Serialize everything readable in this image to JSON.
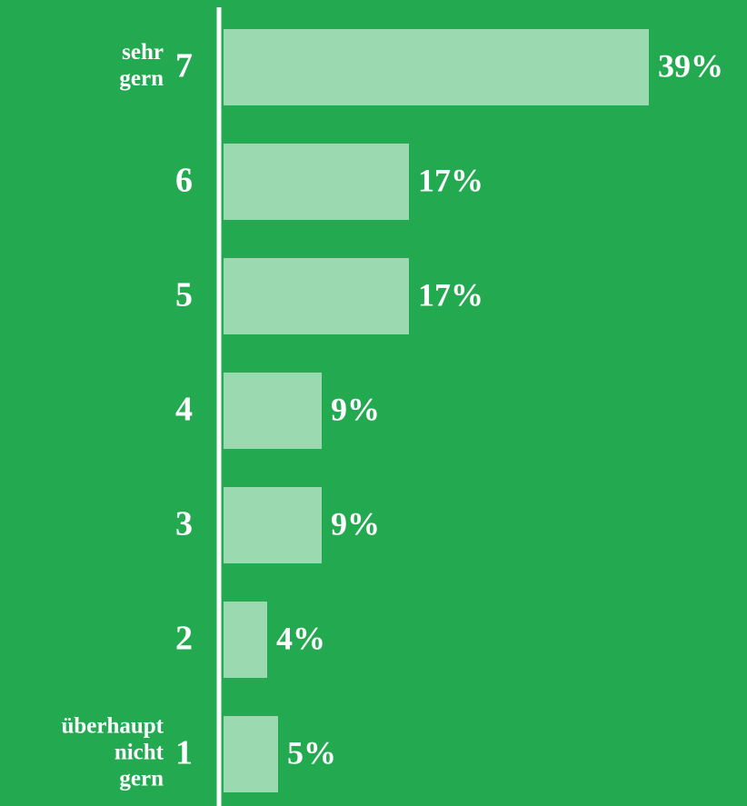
{
  "chart_data": {
    "type": "barh",
    "categories": [
      "7",
      "6",
      "5",
      "4",
      "3",
      "2",
      "1"
    ],
    "values": [
      39,
      17,
      17,
      9,
      9,
      4,
      5
    ],
    "value_labels": [
      "39%",
      "17%",
      "17%",
      "9%",
      "9%",
      "4%",
      "5%"
    ],
    "color": "#9bdab0",
    "xlim": [
      0,
      48
    ],
    "annotations": [
      [
        "sehr",
        "gern"
      ],
      [
        "überhaupt",
        "nicht",
        "gern"
      ]
    ]
  }
}
